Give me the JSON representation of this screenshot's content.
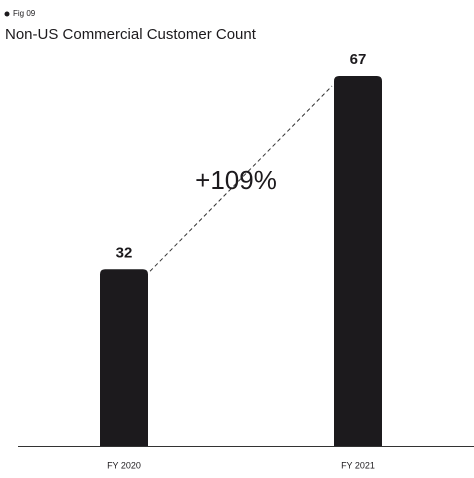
{
  "chart_data": {
    "type": "bar",
    "figure_label": "Fig 09",
    "title": "Non-US Commercial Customer Count",
    "categories": [
      "FY 2020",
      "FY 2021"
    ],
    "values": [
      32,
      67
    ],
    "color": "#1c1a1d",
    "annotation": "+109%"
  }
}
